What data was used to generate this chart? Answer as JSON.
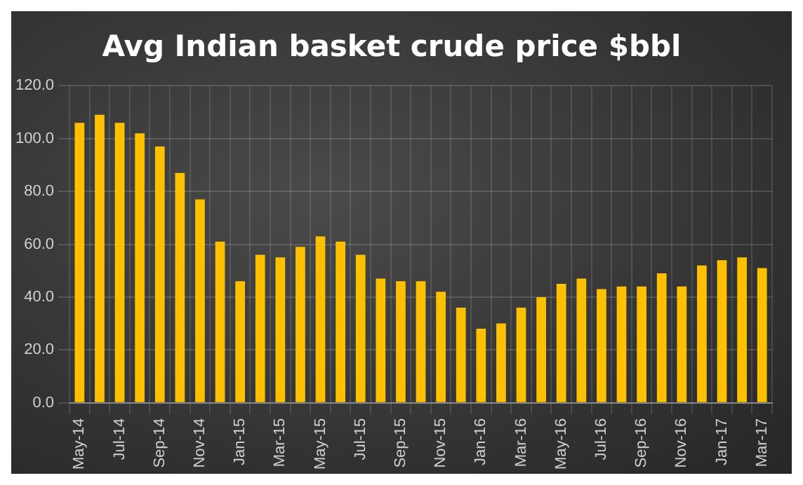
{
  "chart_data": {
    "type": "bar",
    "title": "Avg Indian basket crude price $bbl",
    "categories": [
      "May-14",
      null,
      "Jul-14",
      null,
      "Sep-14",
      null,
      "Nov-14",
      null,
      "Jan-15",
      null,
      "Mar-15",
      null,
      "May-15",
      null,
      "Jul-15",
      null,
      "Sep-15",
      null,
      "Nov-15",
      null,
      "Jan-16",
      null,
      "Mar-16",
      null,
      "May-16",
      null,
      "Jul-16",
      null,
      "Sep-16",
      null,
      "Nov-16",
      null,
      "Jan-17",
      null,
      "Mar-17"
    ],
    "values": [
      106,
      109,
      106,
      102,
      97,
      87,
      77,
      61,
      46,
      56,
      55,
      59,
      63,
      61,
      56,
      47,
      46,
      46,
      42,
      36,
      28,
      30,
      36,
      40,
      45,
      47,
      43,
      44,
      44,
      49,
      44,
      52,
      54,
      55,
      51
    ],
    "color": "#ffc000",
    "ylim": [
      0,
      120
    ],
    "yticks": [
      {
        "value": 0,
        "label": "0.0"
      },
      {
        "value": 20,
        "label": "20.0"
      },
      {
        "value": 40,
        "label": "40.0"
      },
      {
        "value": 60,
        "label": "60.0"
      },
      {
        "value": 80,
        "label": "80.0"
      },
      {
        "value": 100,
        "label": "100.0"
      },
      {
        "value": 120,
        "label": "120.0"
      }
    ],
    "grid": true,
    "legend": false
  }
}
